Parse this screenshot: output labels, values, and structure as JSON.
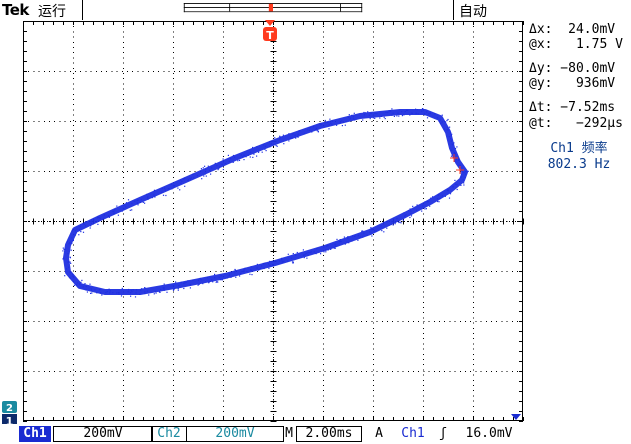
{
  "header": {
    "brand": "Tek",
    "run_status": "运行",
    "acquisition_mode": "自动",
    "trigger_marker_top": "T"
  },
  "readouts": {
    "delta_x": "Δx:  24.0mV",
    "at_x": "@x:   1.75 V",
    "delta_y": "Δy: −80.0mV",
    "at_y": "@y:   936mV",
    "delta_t": "Δt: −7.52ms",
    "at_t": "@t:   −292µs",
    "freq_label": "Ch1 频率",
    "freq_value": "802.3 Hz"
  },
  "bottom_bar": {
    "ch1_label": "Ch1",
    "ch1_scale": "200mV",
    "ch2_label": "Ch2",
    "ch2_scale": "200mV",
    "time_label": "M",
    "time_scale": "2.00ms",
    "trigger_label": "A",
    "trigger_source": "Ch1",
    "trigger_slope": "ʃ",
    "trigger_level": "16.0mV"
  },
  "channel_markers": {
    "ch1": "1",
    "ch2": "2"
  },
  "colors": {
    "trace": "#1f2fe0",
    "cursor": "#ff3b1f",
    "grid": "#000000",
    "ch1": "#1a2bd1",
    "ch2": "#1a8aa0",
    "freq_text": "#0a3b8c"
  }
}
